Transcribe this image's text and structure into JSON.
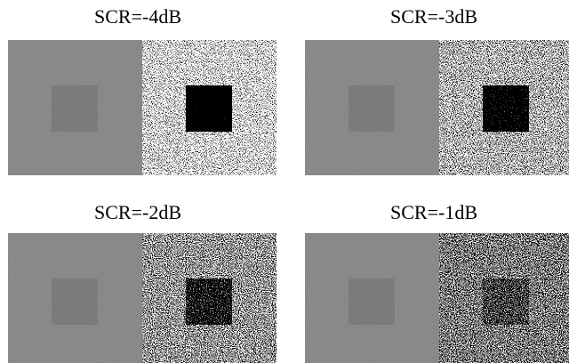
{
  "panels": [
    {
      "title": "SCR=-4dB"
    },
    {
      "title": "SCR=-3dB"
    },
    {
      "title": "SCR=-2dB"
    },
    {
      "title": "SCR=-1dB"
    }
  ]
}
